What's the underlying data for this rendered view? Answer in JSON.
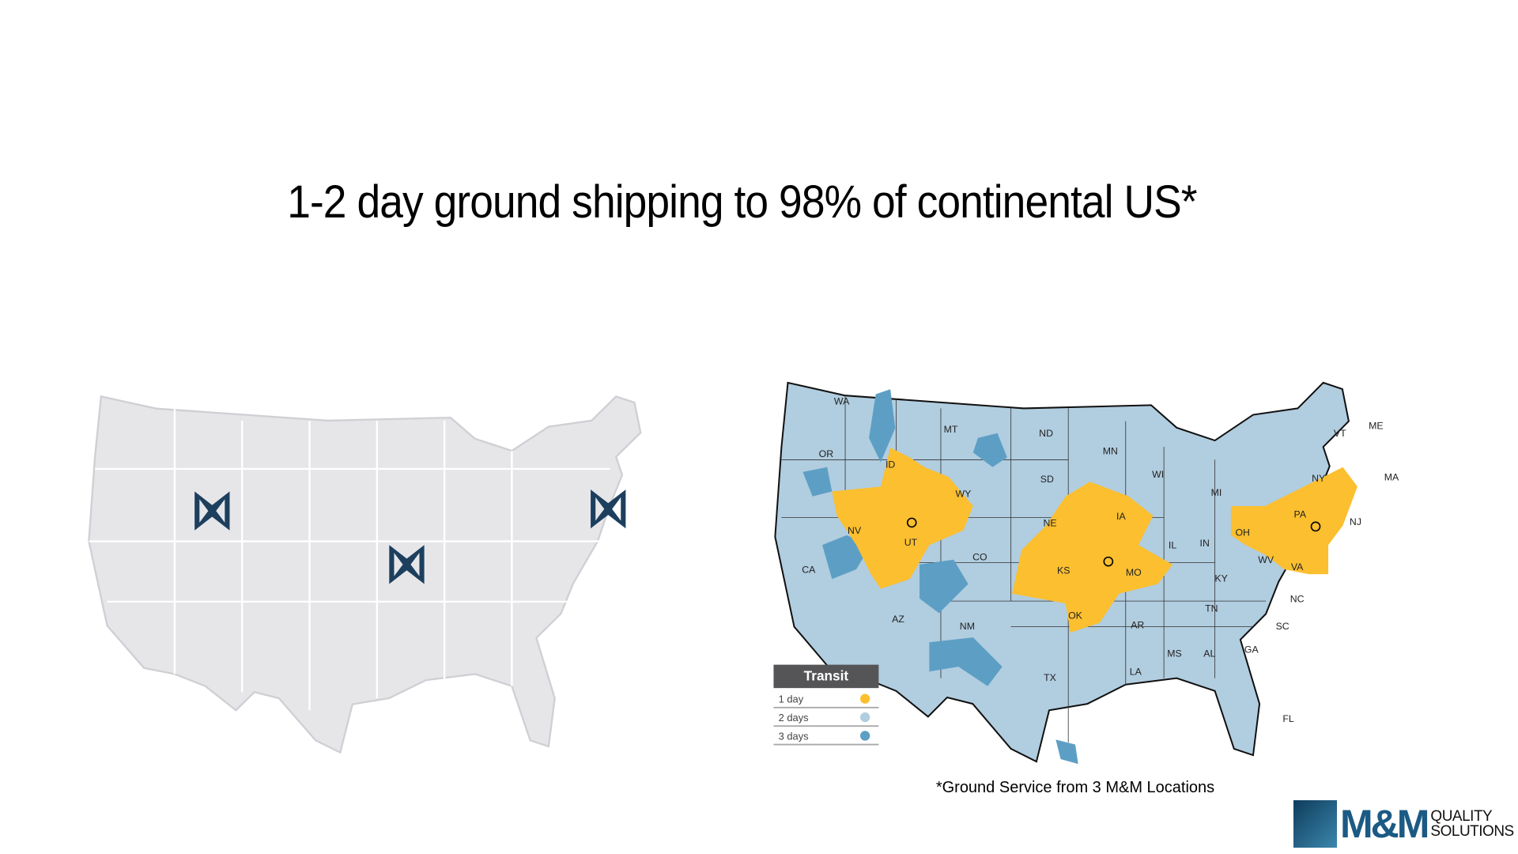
{
  "title": "1-2 day ground shipping to 98% of continental US*",
  "footnote": "*Ground Service from 3 M&M Locations",
  "legend": {
    "title": "Transit",
    "items": [
      {
        "label": "1 day",
        "color": "#fbbf2f"
      },
      {
        "label": "2 days",
        "color": "#b1cde0"
      },
      {
        "label": "3 days",
        "color": "#5d9fc4"
      }
    ]
  },
  "states": [
    "WA",
    "OR",
    "CA",
    "NV",
    "ID",
    "MT",
    "WY",
    "UT",
    "AZ",
    "CO",
    "NM",
    "ND",
    "SD",
    "NE",
    "KS",
    "OK",
    "TX",
    "MN",
    "IA",
    "MO",
    "AR",
    "LA",
    "WI",
    "IL",
    "MI",
    "IN",
    "OH",
    "KY",
    "TN",
    "MS",
    "AL",
    "GA",
    "FL",
    "SC",
    "NC",
    "VA",
    "WV",
    "PA",
    "NY",
    "NJ",
    "VT",
    "ME",
    "MA"
  ],
  "logo": {
    "mark": "M&M",
    "line1": "QUALITY",
    "line2": "SOLUTIONS"
  },
  "colors": {
    "map_gray": "#e6e6e9",
    "logo_navy": "#1d3f5e",
    "two_day": "#b1cde0",
    "one_day": "#fbbf2f",
    "three_day": "#5d9fc4"
  }
}
